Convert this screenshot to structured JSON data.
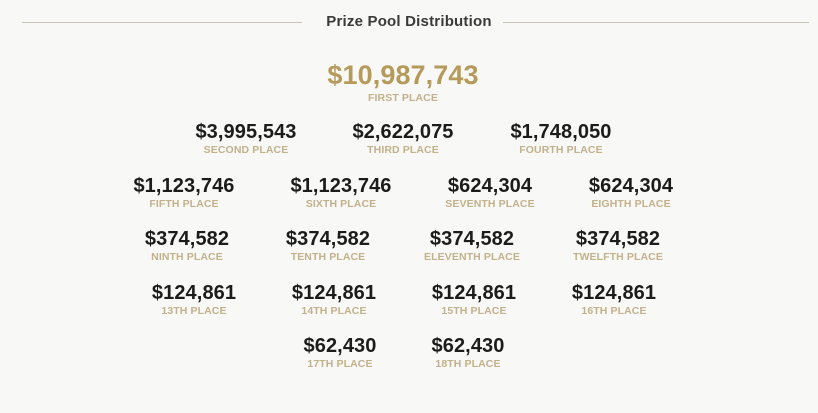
{
  "header": {
    "title": "Prize Pool Distribution"
  },
  "prizes": [
    {
      "amount": "$10,987,743",
      "place": "FIRST PLACE"
    },
    {
      "amount": "$3,995,543",
      "place": "SECOND PLACE"
    },
    {
      "amount": "$2,622,075",
      "place": "THIRD PLACE"
    },
    {
      "amount": "$1,748,050",
      "place": "FOURTH PLACE"
    },
    {
      "amount": "$1,123,746",
      "place": "FIFTH PLACE"
    },
    {
      "amount": "$1,123,746",
      "place": "SIXTH PLACE"
    },
    {
      "amount": "$624,304",
      "place": "SEVENTH PLACE"
    },
    {
      "amount": "$624,304",
      "place": "EIGHTH PLACE"
    },
    {
      "amount": "$374,582",
      "place": "NINTH PLACE"
    },
    {
      "amount": "$374,582",
      "place": "TENTH PLACE"
    },
    {
      "amount": "$374,582",
      "place": "ELEVENTH PLACE"
    },
    {
      "amount": "$374,582",
      "place": "TWELFTH PLACE"
    },
    {
      "amount": "$124,861",
      "place": "13TH PLACE"
    },
    {
      "amount": "$124,861",
      "place": "14TH PLACE"
    },
    {
      "amount": "$124,861",
      "place": "15TH PLACE"
    },
    {
      "amount": "$124,861",
      "place": "16TH PLACE"
    },
    {
      "amount": "$62,430",
      "place": "17TH PLACE"
    },
    {
      "amount": "$62,430",
      "place": "18TH PLACE"
    }
  ],
  "colors": {
    "accent_gold": "#b59a5a",
    "label_gold": "#c2b18a",
    "amount_dark": "#1c1c1c",
    "background": "#f8f8f7"
  }
}
